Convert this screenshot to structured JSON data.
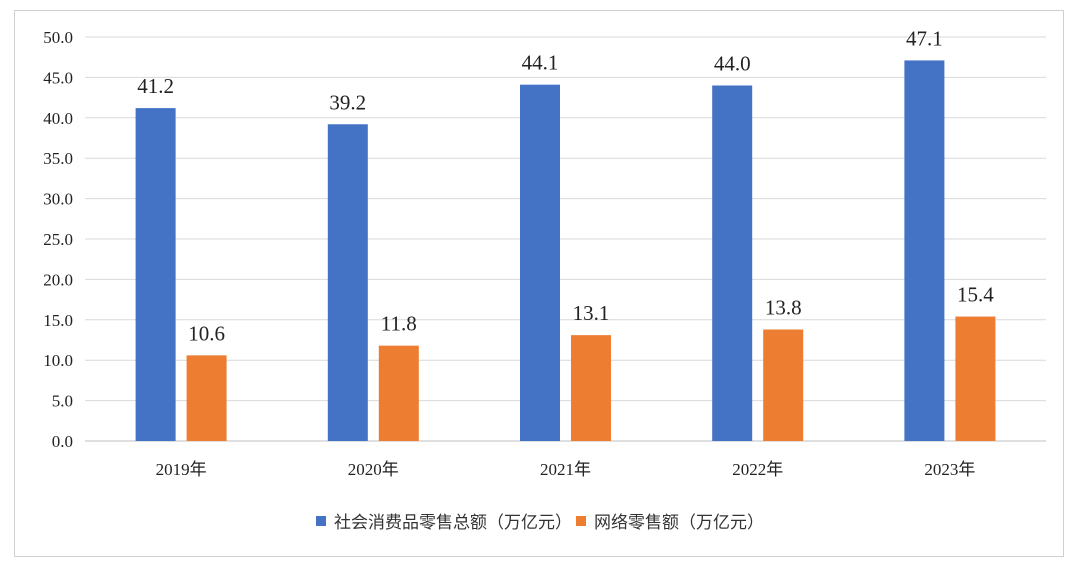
{
  "chart_data": {
    "type": "bar",
    "categories": [
      "2019年",
      "2020年",
      "2021年",
      "2022年",
      "2023年"
    ],
    "series": [
      {
        "name": "社会消费品零售总额（万亿元）",
        "values": [
          41.2,
          39.2,
          44.1,
          44.0,
          47.1
        ],
        "color": "#4472C4"
      },
      {
        "name": "网络零售额（万亿元）",
        "values": [
          10.6,
          11.8,
          13.1,
          13.8,
          15.4
        ],
        "color": "#ED7D31"
      }
    ],
    "ylim": [
      0,
      50
    ],
    "yticks": [
      "0.0",
      "5.0",
      "10.0",
      "15.0",
      "20.0",
      "25.0",
      "30.0",
      "35.0",
      "40.0",
      "45.0",
      "50.0"
    ],
    "grid": true,
    "legend_position": "bottom"
  }
}
